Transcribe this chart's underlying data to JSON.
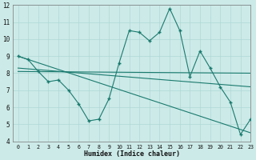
{
  "x": [
    0,
    1,
    2,
    3,
    4,
    5,
    6,
    7,
    8,
    9,
    10,
    11,
    12,
    13,
    14,
    15,
    16,
    17,
    18,
    19,
    20,
    21,
    22,
    23
  ],
  "y_main": [
    9.0,
    8.8,
    8.1,
    7.5,
    7.6,
    7.0,
    6.2,
    5.2,
    5.3,
    6.5,
    8.6,
    10.5,
    10.4,
    9.9,
    10.4,
    11.8,
    10.5,
    7.8,
    9.3,
    8.3,
    7.2,
    6.3,
    4.4,
    5.3
  ],
  "trend1_x": [
    0,
    23
  ],
  "trend1_y": [
    9.0,
    4.5
  ],
  "trend2_x": [
    0,
    23
  ],
  "trend2_y": [
    8.1,
    8.0
  ],
  "trend3_x": [
    0,
    23
  ],
  "trend3_y": [
    8.3,
    7.2
  ],
  "line_color": "#1a7a6e",
  "bg_color": "#cceae8",
  "grid_color_major": "#afd8d5",
  "grid_color_minor": "#c5e5e3",
  "xlabel": "Humidex (Indice chaleur)",
  "ylim": [
    4,
    12
  ],
  "xlim": [
    -0.5,
    23
  ],
  "yticks": [
    4,
    5,
    6,
    7,
    8,
    9,
    10,
    11,
    12
  ],
  "xticks": [
    0,
    1,
    2,
    3,
    4,
    5,
    6,
    7,
    8,
    9,
    10,
    11,
    12,
    13,
    14,
    15,
    16,
    17,
    18,
    19,
    20,
    21,
    22,
    23
  ]
}
